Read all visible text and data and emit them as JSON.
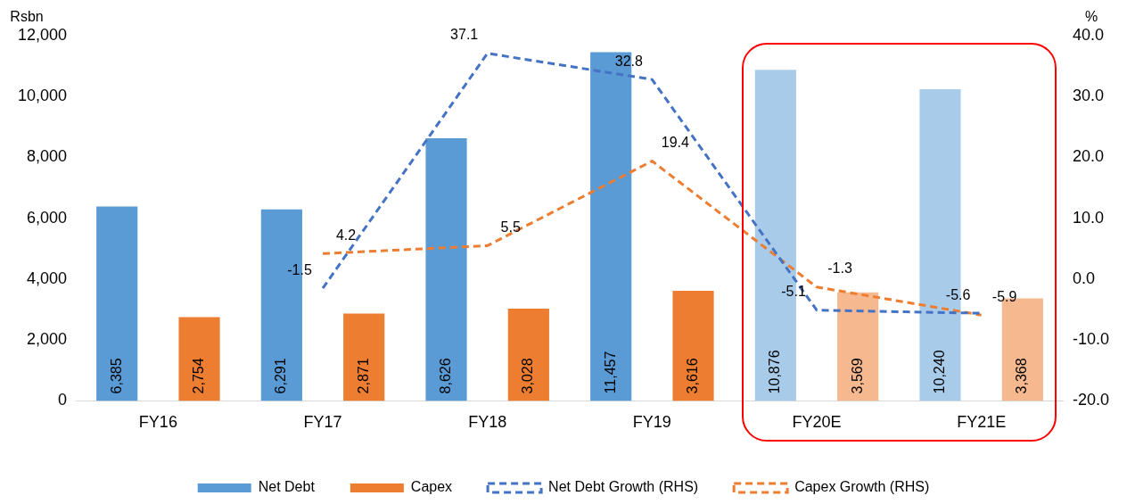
{
  "chart_data": {
    "type": "bar",
    "ylabel": "Rsbn",
    "y2label": "%",
    "categories": [
      "FY16",
      "FY17",
      "FY18",
      "FY19",
      "FY20E",
      "FY21E"
    ],
    "series": [
      {
        "name": "Net Debt",
        "color": "#5b9bd5",
        "colors": [
          "#5b9bd5",
          "#5b9bd5",
          "#5b9bd5",
          "#5b9bd5",
          "#a9cbea",
          "#a9cbea"
        ],
        "values": [
          6385,
          6291,
          8626,
          11457,
          10876,
          10240
        ],
        "value_labels": [
          "6,385",
          "6,291",
          "8,626",
          "11,457",
          "10,876",
          "10,240"
        ]
      },
      {
        "name": "Capex",
        "color": "#ed7d31",
        "colors": [
          "#ed7d31",
          "#ed7d31",
          "#ed7d31",
          "#ed7d31",
          "#f5b88f",
          "#f5b88f"
        ],
        "values": [
          2754,
          2871,
          3028,
          3616,
          3569,
          3368
        ],
        "value_labels": [
          "2,754",
          "2,871",
          "3,028",
          "3,616",
          "3,569",
          "3,368"
        ]
      },
      {
        "name": "Net Debt Growth (RHS)",
        "type": "line",
        "axis": "y2",
        "color": "#4472c4",
        "values": [
          null,
          -1.5,
          37.1,
          32.8,
          -5.1,
          -5.6
        ],
        "value_labels": [
          null,
          "-1.5",
          "37.1",
          "32.8",
          "-5.1",
          "-5.6"
        ]
      },
      {
        "name": "Capex Growth (RHS)",
        "type": "line",
        "axis": "y2",
        "color": "#ed7d31",
        "values": [
          null,
          4.2,
          5.5,
          19.4,
          -1.3,
          -5.9
        ],
        "value_labels": [
          null,
          "4.2",
          "5.5",
          "19.4",
          "-1.3",
          "-5.9"
        ]
      }
    ],
    "ylim": [
      0,
      12000
    ],
    "yticks": [
      {
        "value": 0,
        "label": "0"
      },
      {
        "value": 2000,
        "label": "2,000"
      },
      {
        "value": 4000,
        "label": "4,000"
      },
      {
        "value": 6000,
        "label": "6,000"
      },
      {
        "value": 8000,
        "label": "8,000"
      },
      {
        "value": 10000,
        "label": "10,000"
      },
      {
        "value": 12000,
        "label": "12,000"
      }
    ],
    "y2lim": [
      -20,
      40
    ],
    "y2ticks": [
      {
        "value": -20,
        "label": "-20.0"
      },
      {
        "value": -10,
        "label": "-10.0"
      },
      {
        "value": 0,
        "label": "0.0"
      },
      {
        "value": 10,
        "label": "10.0"
      },
      {
        "value": 20,
        "label": "20.0"
      },
      {
        "value": 30,
        "label": "30.0"
      },
      {
        "value": 40,
        "label": "40.0"
      }
    ],
    "grid": false,
    "legend": "bottom",
    "marker": "none",
    "line_style": "dashed"
  }
}
